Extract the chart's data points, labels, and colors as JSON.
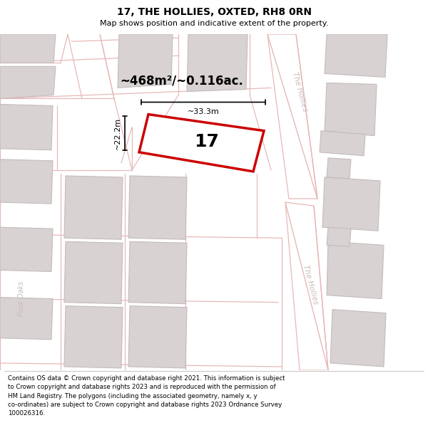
{
  "title": "17, THE HOLLIES, OXTED, RH8 0RN",
  "subtitle": "Map shows position and indicative extent of the property.",
  "footer": "Contains OS data © Crown copyright and database right 2021. This information is subject\nto Crown copyright and database rights 2023 and is reproduced with the permission of\nHM Land Registry. The polygons (including the associated geometry, namely x, y\nco-ordinates) are subject to Crown copyright and database rights 2023 Ordnance Survey\n100026316.",
  "map_bg": "#f8f5f5",
  "road_line": "#e8b8b8",
  "bld_fill": "#d8d2d2",
  "bld_edge": "#c4bcbc",
  "hl_color": "#cc0000",
  "hl_fill": "#ffffff",
  "street_color": "#c8bcbc",
  "area_text": "~468m²/~0.116ac.",
  "width_label": "~33.3m",
  "height_label": "~22.2m",
  "lot_label": "17",
  "street_upper": "The Hollies",
  "street_lower": "The Hollies",
  "street_left": "Four Oaks",
  "title_fontsize": 10,
  "subtitle_fontsize": 8,
  "footer_fontsize": 6.2,
  "area_fontsize": 12,
  "lot_fontsize": 18,
  "dim_fontsize": 8,
  "street_fontsize": 7.5
}
